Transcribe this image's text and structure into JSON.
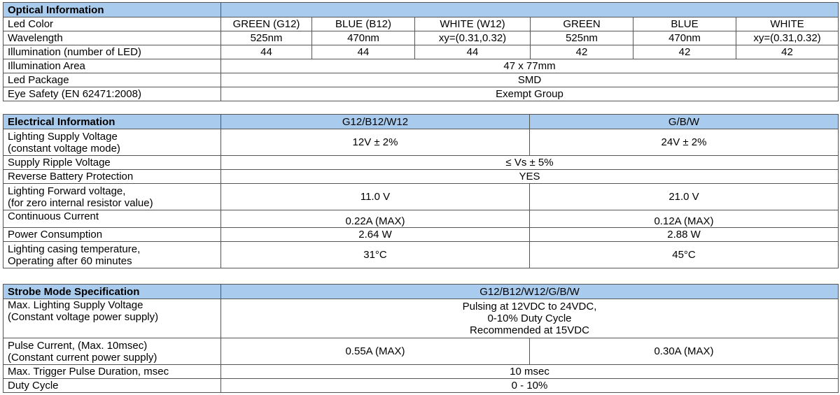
{
  "optical": {
    "title": "Optical Information",
    "rows": [
      {
        "label": "Led Color",
        "cells": [
          "GREEN (G12)",
          "BLUE (B12)",
          "WHITE (W12)",
          "GREEN",
          "BLUE",
          "WHITE"
        ]
      },
      {
        "label": "Wavelength",
        "cells": [
          "525nm",
          "470nm",
          "xy=(0.31,0.32)",
          "525nm",
          "470nm",
          "xy=(0.31,0.32)"
        ]
      },
      {
        "label": "Illumination (number of LED)",
        "cells": [
          "44",
          "44",
          "44",
          "42",
          "42",
          "42"
        ]
      },
      {
        "label": "Illumination Area",
        "value": "47 x 77mm"
      },
      {
        "label": "Led Package",
        "value": "SMD"
      },
      {
        "label": "Eye Safety (EN 62471:2008)",
        "value": "Exempt Group"
      }
    ]
  },
  "electrical": {
    "title": "Electrical Information",
    "col1": "G12/B12/W12",
    "col2": "G/B/W",
    "rows": [
      {
        "label": [
          "Lighting Supply Voltage",
          "(constant voltage mode)"
        ],
        "cells": [
          "12V ± 2%",
          "24V ± 2%"
        ]
      },
      {
        "label": [
          "Supply Ripple Voltage"
        ],
        "value": "≤ Vs ± 5%"
      },
      {
        "label": [
          "Reverse Battery Protection"
        ],
        "value": "YES"
      },
      {
        "label": [
          "Lighting Forward voltage,",
          "(for zero internal resistor value)"
        ],
        "cells": [
          "11.0 V",
          "21.0 V"
        ]
      },
      {
        "label": [
          "Continuous Current"
        ],
        "cells": [
          "0.22A (MAX)",
          "0.12A (MAX)"
        ]
      },
      {
        "label": [
          "Power Consumption"
        ],
        "cells": [
          "2.64 W",
          "2.88 W"
        ]
      },
      {
        "label": [
          "Lighting casing temperature,",
          "Operating after 60 minutes"
        ],
        "cells": [
          "31°C",
          "45°C"
        ]
      }
    ]
  },
  "strobe": {
    "title": "Strobe Mode Specification",
    "col": "G12/B12/W12/G/B/W",
    "rows": [
      {
        "label": [
          "Max. Lighting Supply Voltage",
          "(Constant voltage power supply)"
        ],
        "value_lines": [
          "Pulsing at 12VDC to 24VDC,",
          "0-10% Duty Cycle",
          "Recommended at 15VDC"
        ]
      },
      {
        "label": [
          "Pulse Current, (Max. 10msec)",
          "(Constant current power supply)"
        ],
        "cells": [
          "0.55A (MAX)",
          "0.30A (MAX)"
        ]
      },
      {
        "label": [
          "Max. Trigger Pulse Duration, msec"
        ],
        "value": "10 msec"
      },
      {
        "label": [
          "Duty Cycle"
        ],
        "value": "0 - 10%"
      }
    ]
  }
}
